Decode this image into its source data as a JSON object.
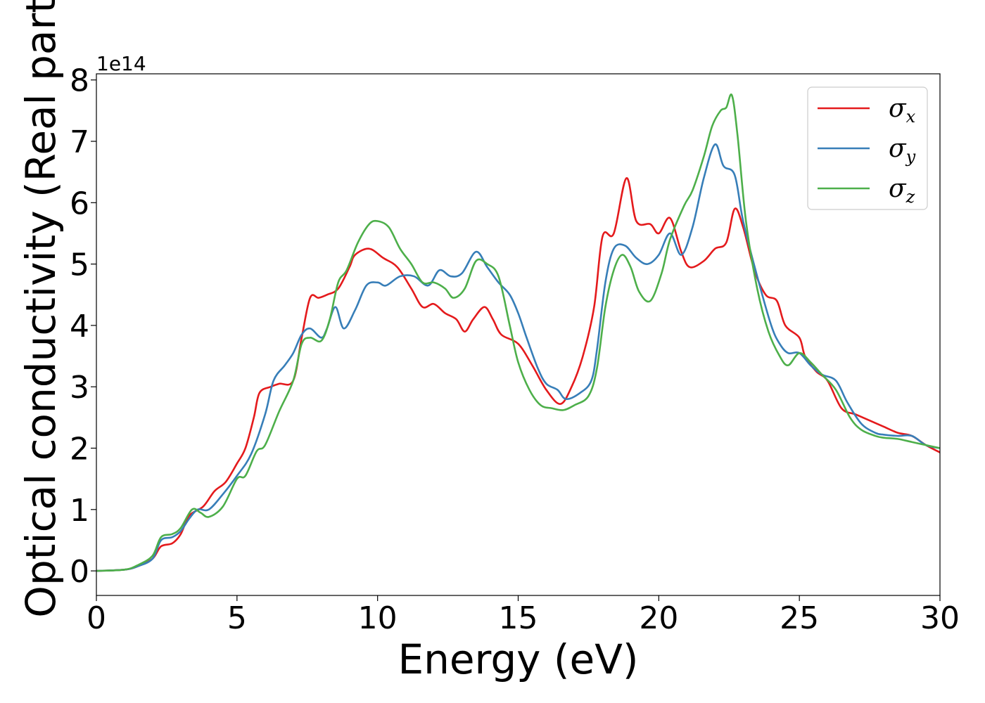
{
  "chart_data": {
    "type": "line",
    "xlabel": "Energy (eV)",
    "ylabel": "Optical conductivity (Real part)",
    "y_offset_label": "1e14",
    "xlim": [
      0,
      30
    ],
    "ylim": [
      -0.4,
      8.1
    ],
    "xticks": [
      0,
      5,
      10,
      15,
      20,
      25,
      30
    ],
    "yticks": [
      0,
      1,
      2,
      3,
      4,
      5,
      6,
      7,
      8
    ],
    "xtick_labels": [
      "0",
      "5",
      "10",
      "15",
      "20",
      "25",
      "30"
    ],
    "ytick_labels": [
      "0",
      "1",
      "2",
      "3",
      "4",
      "5",
      "6",
      "7",
      "8"
    ],
    "grid": false,
    "legend_position": "top-right",
    "series": [
      {
        "name": "σx",
        "symbol": "σ",
        "subscript": "x",
        "color": "#e41a1c",
        "points": [
          [
            0,
            0
          ],
          [
            1,
            0.02
          ],
          [
            1.5,
            0.08
          ],
          [
            2,
            0.2
          ],
          [
            2.3,
            0.4
          ],
          [
            2.7,
            0.45
          ],
          [
            3,
            0.6
          ],
          [
            3.3,
            0.9
          ],
          [
            3.8,
            1.05
          ],
          [
            4.2,
            1.3
          ],
          [
            4.6,
            1.45
          ],
          [
            5,
            1.75
          ],
          [
            5.3,
            2.0
          ],
          [
            5.6,
            2.5
          ],
          [
            5.8,
            2.9
          ],
          [
            6.2,
            3.0
          ],
          [
            6.5,
            3.05
          ],
          [
            7,
            3.1
          ],
          [
            7.3,
            3.8
          ],
          [
            7.6,
            4.45
          ],
          [
            7.9,
            4.45
          ],
          [
            8.2,
            4.5
          ],
          [
            8.6,
            4.6
          ],
          [
            9,
            4.95
          ],
          [
            9.2,
            5.15
          ],
          [
            9.7,
            5.25
          ],
          [
            10.2,
            5.1
          ],
          [
            10.7,
            4.95
          ],
          [
            11.2,
            4.6
          ],
          [
            11.6,
            4.3
          ],
          [
            12,
            4.35
          ],
          [
            12.4,
            4.2
          ],
          [
            12.8,
            4.1
          ],
          [
            13.1,
            3.9
          ],
          [
            13.4,
            4.1
          ],
          [
            13.8,
            4.3
          ],
          [
            14.1,
            4.1
          ],
          [
            14.4,
            3.85
          ],
          [
            15,
            3.7
          ],
          [
            15.5,
            3.35
          ],
          [
            16,
            2.95
          ],
          [
            16.5,
            2.72
          ],
          [
            16.9,
            3.0
          ],
          [
            17.3,
            3.5
          ],
          [
            17.7,
            4.3
          ],
          [
            18,
            5.45
          ],
          [
            18.4,
            5.5
          ],
          [
            18.85,
            6.4
          ],
          [
            19.2,
            5.7
          ],
          [
            19.7,
            5.65
          ],
          [
            20,
            5.5
          ],
          [
            20.4,
            5.75
          ],
          [
            20.8,
            5.2
          ],
          [
            21.1,
            4.95
          ],
          [
            21.6,
            5.05
          ],
          [
            22,
            5.25
          ],
          [
            22.4,
            5.35
          ],
          [
            22.7,
            5.9
          ],
          [
            23,
            5.6
          ],
          [
            23.4,
            4.9
          ],
          [
            23.8,
            4.5
          ],
          [
            24.2,
            4.4
          ],
          [
            24.5,
            4.0
          ],
          [
            25,
            3.8
          ],
          [
            25.2,
            3.5
          ],
          [
            25.6,
            3.25
          ],
          [
            26,
            3.1
          ],
          [
            26.5,
            2.65
          ],
          [
            27,
            2.55
          ],
          [
            27.5,
            2.45
          ],
          [
            28,
            2.35
          ],
          [
            28.5,
            2.25
          ],
          [
            29,
            2.2
          ],
          [
            29.5,
            2.05
          ],
          [
            30,
            1.93
          ]
        ]
      },
      {
        "name": "σy",
        "symbol": "σ",
        "subscript": "y",
        "color": "#377eb8",
        "points": [
          [
            0,
            0
          ],
          [
            1,
            0.02
          ],
          [
            1.5,
            0.08
          ],
          [
            2,
            0.2
          ],
          [
            2.3,
            0.5
          ],
          [
            2.7,
            0.55
          ],
          [
            3,
            0.65
          ],
          [
            3.3,
            0.85
          ],
          [
            3.6,
            1.0
          ],
          [
            4,
            1.0
          ],
          [
            4.5,
            1.25
          ],
          [
            5,
            1.55
          ],
          [
            5.5,
            1.9
          ],
          [
            6,
            2.55
          ],
          [
            6.3,
            3.1
          ],
          [
            6.7,
            3.35
          ],
          [
            7,
            3.55
          ],
          [
            7.3,
            3.85
          ],
          [
            7.6,
            3.95
          ],
          [
            8,
            3.8
          ],
          [
            8.2,
            3.95
          ],
          [
            8.5,
            4.3
          ],
          [
            8.8,
            3.95
          ],
          [
            9.2,
            4.25
          ],
          [
            9.6,
            4.65
          ],
          [
            10,
            4.7
          ],
          [
            10.3,
            4.65
          ],
          [
            10.8,
            4.8
          ],
          [
            11.3,
            4.8
          ],
          [
            11.8,
            4.65
          ],
          [
            12.2,
            4.9
          ],
          [
            12.6,
            4.8
          ],
          [
            13,
            4.85
          ],
          [
            13.5,
            5.2
          ],
          [
            13.9,
            4.95
          ],
          [
            14.3,
            4.7
          ],
          [
            14.7,
            4.5
          ],
          [
            15,
            4.2
          ],
          [
            15.3,
            3.8
          ],
          [
            15.7,
            3.3
          ],
          [
            16,
            3.05
          ],
          [
            16.4,
            2.95
          ],
          [
            16.7,
            2.8
          ],
          [
            17.2,
            2.9
          ],
          [
            17.6,
            3.1
          ],
          [
            17.8,
            3.6
          ],
          [
            18.1,
            4.7
          ],
          [
            18.4,
            5.25
          ],
          [
            18.8,
            5.3
          ],
          [
            19.2,
            5.1
          ],
          [
            19.6,
            5.0
          ],
          [
            20,
            5.15
          ],
          [
            20.4,
            5.5
          ],
          [
            20.8,
            5.15
          ],
          [
            21.2,
            5.6
          ],
          [
            21.6,
            6.4
          ],
          [
            22,
            6.95
          ],
          [
            22.3,
            6.6
          ],
          [
            22.7,
            6.45
          ],
          [
            23,
            5.7
          ],
          [
            23.5,
            4.8
          ],
          [
            24,
            4.0
          ],
          [
            24.3,
            3.7
          ],
          [
            24.6,
            3.55
          ],
          [
            25,
            3.55
          ],
          [
            25.4,
            3.35
          ],
          [
            25.8,
            3.2
          ],
          [
            26.3,
            3.1
          ],
          [
            26.7,
            2.75
          ],
          [
            27.2,
            2.4
          ],
          [
            27.7,
            2.25
          ],
          [
            28,
            2.22
          ],
          [
            28.5,
            2.2
          ],
          [
            29,
            2.2
          ],
          [
            29.5,
            2.05
          ],
          [
            30,
            2.0
          ]
        ]
      },
      {
        "name": "σz",
        "symbol": "σ",
        "subscript": "z",
        "color": "#4daf4a",
        "points": [
          [
            0,
            0
          ],
          [
            1,
            0.02
          ],
          [
            1.5,
            0.1
          ],
          [
            2,
            0.25
          ],
          [
            2.3,
            0.55
          ],
          [
            2.7,
            0.6
          ],
          [
            3,
            0.7
          ],
          [
            3.4,
            1.0
          ],
          [
            3.7,
            0.95
          ],
          [
            4,
            0.88
          ],
          [
            4.5,
            1.05
          ],
          [
            5,
            1.5
          ],
          [
            5.3,
            1.55
          ],
          [
            5.7,
            1.95
          ],
          [
            6,
            2.05
          ],
          [
            6.5,
            2.6
          ],
          [
            7,
            3.1
          ],
          [
            7.3,
            3.7
          ],
          [
            7.6,
            3.8
          ],
          [
            8,
            3.75
          ],
          [
            8.3,
            4.1
          ],
          [
            8.6,
            4.7
          ],
          [
            8.9,
            4.9
          ],
          [
            9.3,
            5.35
          ],
          [
            9.7,
            5.65
          ],
          [
            10,
            5.7
          ],
          [
            10.4,
            5.6
          ],
          [
            10.8,
            5.25
          ],
          [
            11.2,
            5.0
          ],
          [
            11.6,
            4.7
          ],
          [
            12,
            4.7
          ],
          [
            12.4,
            4.6
          ],
          [
            12.7,
            4.45
          ],
          [
            13.1,
            4.6
          ],
          [
            13.5,
            5.05
          ],
          [
            13.9,
            5.0
          ],
          [
            14.3,
            4.8
          ],
          [
            14.7,
            4.0
          ],
          [
            15,
            3.4
          ],
          [
            15.4,
            2.95
          ],
          [
            15.8,
            2.7
          ],
          [
            16.2,
            2.65
          ],
          [
            16.6,
            2.62
          ],
          [
            17,
            2.7
          ],
          [
            17.5,
            2.85
          ],
          [
            17.8,
            3.3
          ],
          [
            18.1,
            4.3
          ],
          [
            18.4,
            4.9
          ],
          [
            18.7,
            5.15
          ],
          [
            19.0,
            4.95
          ],
          [
            19.3,
            4.55
          ],
          [
            19.7,
            4.4
          ],
          [
            20.1,
            4.85
          ],
          [
            20.4,
            5.4
          ],
          [
            20.9,
            5.95
          ],
          [
            21.2,
            6.2
          ],
          [
            21.6,
            6.75
          ],
          [
            21.9,
            7.25
          ],
          [
            22.2,
            7.5
          ],
          [
            22.4,
            7.55
          ],
          [
            22.6,
            7.75
          ],
          [
            22.8,
            7.1
          ],
          [
            23.1,
            5.7
          ],
          [
            23.5,
            4.6
          ],
          [
            23.9,
            3.9
          ],
          [
            24.3,
            3.5
          ],
          [
            24.6,
            3.35
          ],
          [
            25,
            3.55
          ],
          [
            25.4,
            3.4
          ],
          [
            25.8,
            3.2
          ],
          [
            26.3,
            2.95
          ],
          [
            26.8,
            2.5
          ],
          [
            27.2,
            2.3
          ],
          [
            27.7,
            2.2
          ],
          [
            28,
            2.17
          ],
          [
            28.5,
            2.15
          ],
          [
            29,
            2.1
          ],
          [
            29.5,
            2.05
          ],
          [
            30,
            2.0
          ]
        ]
      }
    ]
  }
}
